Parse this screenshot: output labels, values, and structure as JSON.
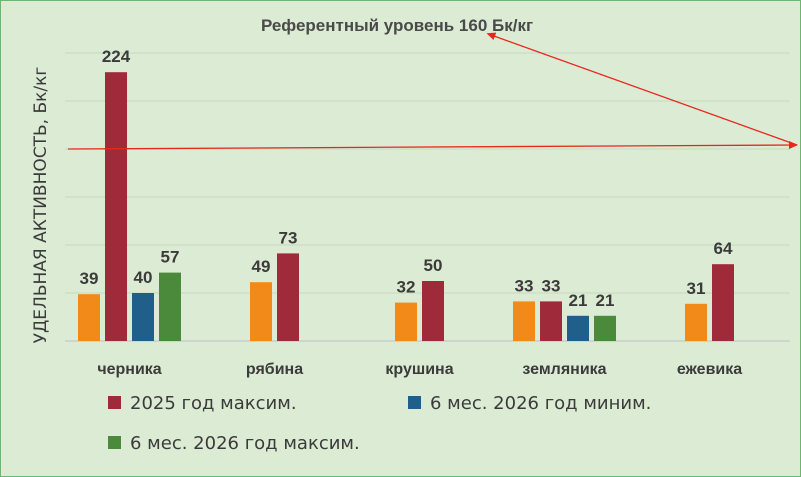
{
  "chart_data": {
    "type": "bar",
    "title": "Референтный уровень 160 Бк/кг",
    "ylabel": "УДЕЛЬНАЯ АКТИВНОСТЬ, Бк/кг",
    "xlabel": "",
    "ylim": [
      0,
      240
    ],
    "grid": true,
    "legend_position": "bottom",
    "reference_line": {
      "value": 160,
      "color": "#e8281e"
    },
    "categories": [
      "черника",
      "рябина",
      "крушина",
      "земляника",
      "ежевика"
    ],
    "series": [
      {
        "name": "",
        "color": "#f28a1a",
        "values": [
          39,
          49,
          32,
          33,
          31
        ]
      },
      {
        "name": "2025 год максим.",
        "color": "#9e2a3a",
        "values": [
          224,
          73,
          50,
          33,
          64
        ]
      },
      {
        "name": "6 мес. 2026 год миним.",
        "color": "#1f5f8a",
        "values": [
          40,
          null,
          null,
          21,
          null
        ]
      },
      {
        "name": "6 мес. 2026 год максим.",
        "color": "#4b8a3a",
        "values": [
          57,
          null,
          null,
          21,
          null
        ]
      }
    ]
  },
  "colors": {
    "background": "#dcebd4",
    "border": "#6fb46f",
    "grid": "#c4d8bc",
    "axis": "#bfbfbf"
  }
}
